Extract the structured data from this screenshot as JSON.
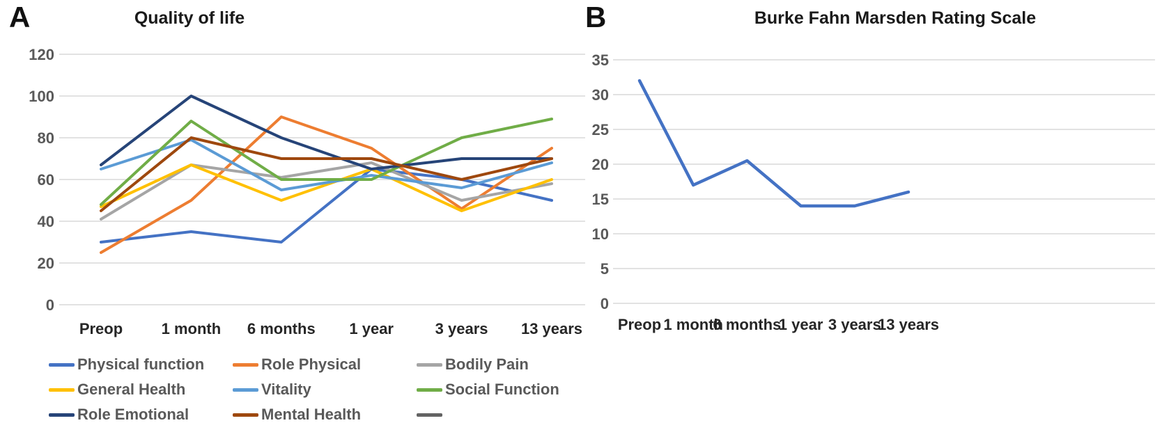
{
  "figure": {
    "panels": [
      {
        "label": "A",
        "title": "Quality of life"
      },
      {
        "label": "B",
        "title": "Burke Fahn Marsden Rating Scale"
      }
    ]
  },
  "chart_data": [
    {
      "type": "line",
      "panel": "A",
      "title": "Quality of life",
      "categories": [
        "Preop",
        "1 month",
        "6 months",
        "1 year",
        "3 years",
        "13 years"
      ],
      "series": [
        {
          "name": "Physical function",
          "color": "#4472C4",
          "values": [
            30,
            35,
            30,
            65,
            60,
            50
          ]
        },
        {
          "name": "Role Physical",
          "color": "#ED7D31",
          "values": [
            25,
            50,
            90,
            75,
            46,
            75
          ]
        },
        {
          "name": "Bodily Pain",
          "color": "#A5A5A5",
          "values": [
            41,
            67,
            61,
            68,
            50,
            58
          ]
        },
        {
          "name": "General Health",
          "color": "#FFC000",
          "values": [
            47,
            67,
            50,
            65,
            45,
            60
          ]
        },
        {
          "name": "Vitality",
          "color": "#5B9BD5",
          "values": [
            65,
            79,
            55,
            62,
            56,
            68
          ]
        },
        {
          "name": "Social Function",
          "color": "#70AD47",
          "values": [
            48,
            88,
            60,
            60,
            80,
            89
          ]
        },
        {
          "name": "Role Emotional",
          "color": "#264478",
          "values": [
            67,
            100,
            80,
            65,
            70,
            70
          ]
        },
        {
          "name": "Mental Health",
          "color": "#9E480E",
          "values": [
            45,
            80,
            70,
            70,
            60,
            70
          ]
        },
        {
          "name": "",
          "color": "#636363",
          "values": []
        }
      ],
      "ylim": [
        0,
        120
      ],
      "yticks": [
        0,
        20,
        40,
        60,
        80,
        100,
        120
      ],
      "grid": true,
      "legend_position": "bottom"
    },
    {
      "type": "line",
      "panel": "B",
      "title": "Burke Fahn Marsden Rating Scale",
      "categories": [
        "Preop",
        "1 month",
        "6 months",
        "1 year",
        "3 years",
        "13 years"
      ],
      "series": [
        {
          "name": "",
          "color": "#4472C4",
          "values": [
            32,
            17,
            20.5,
            14,
            14,
            16
          ]
        }
      ],
      "ylim": [
        0,
        35
      ],
      "yticks": [
        0,
        5,
        10,
        15,
        20,
        25,
        30,
        35
      ],
      "grid": true,
      "legend_position": "none"
    }
  ],
  "colors": {
    "grid": "#D9D9D9",
    "axis_text": "#595959",
    "category_text": "#262626",
    "legend_text": "#595959"
  }
}
